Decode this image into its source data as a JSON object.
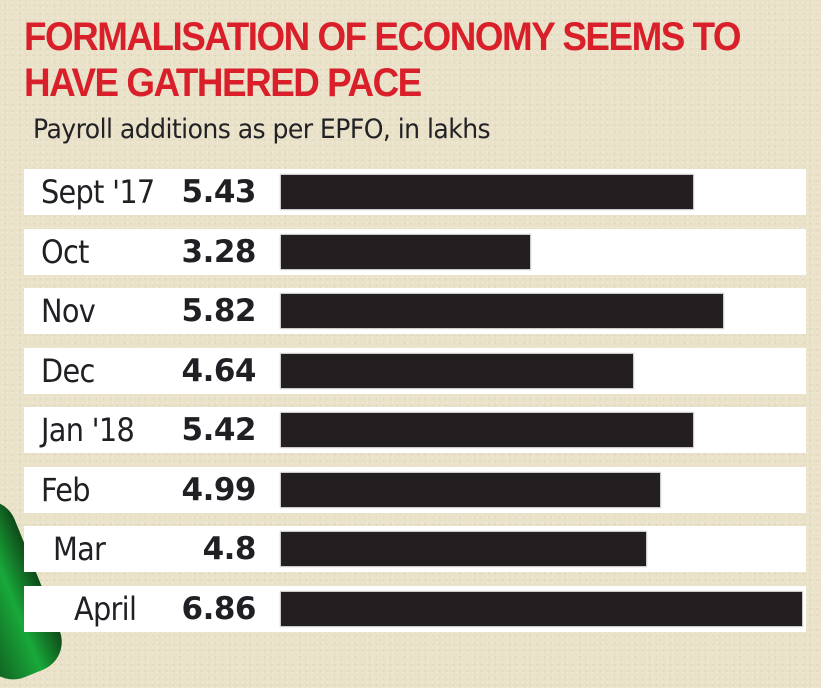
{
  "chart_data": {
    "type": "bar",
    "orientation": "horizontal",
    "title": "FORMALISATION OF ECONOMY SEEMS TO HAVE GATHERED PACE",
    "subtitle": "Payroll additions as per EPFO, in lakhs",
    "xlabel": "",
    "ylabel": "",
    "categories": [
      "Sept '17",
      "Oct",
      "Nov",
      "Dec",
      "Jan '18",
      "Feb",
      "Mar",
      "April"
    ],
    "values": [
      5.43,
      3.28,
      5.82,
      4.64,
      5.42,
      4.99,
      4.8,
      6.86
    ],
    "value_labels": [
      "5.43",
      "3.28",
      "5.82",
      "4.64",
      "5.42",
      "4.99",
      "4.8",
      "6.86"
    ],
    "xlim": [
      0,
      6.86
    ],
    "grid": false,
    "legend": "none",
    "colors": {
      "title": "#d81f2a",
      "bar": "#231f20",
      "row_background": "#ffffff",
      "page_background": "#e9e2c9"
    }
  }
}
